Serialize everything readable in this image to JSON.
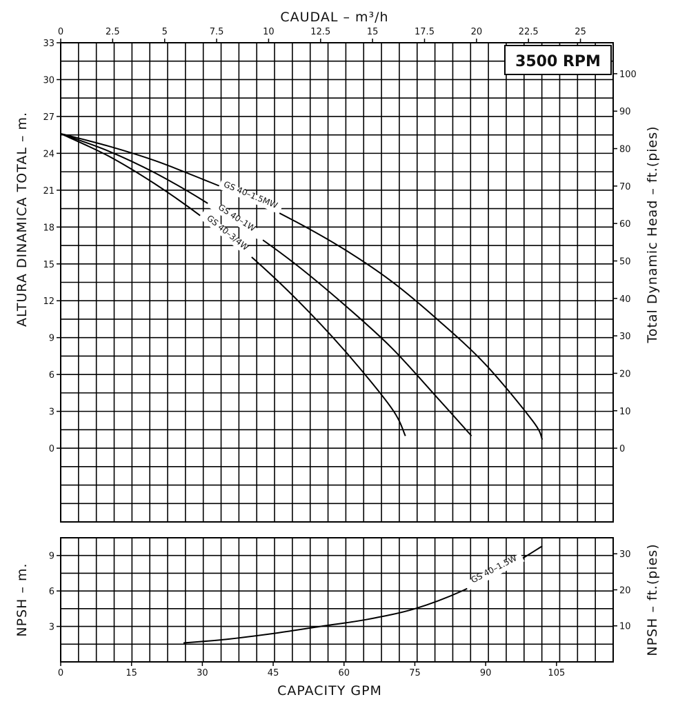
{
  "chart_data": [
    {
      "type": "line",
      "title": "",
      "badge": "3500 RPM",
      "top_xlabel": "CAUDAL  – m³/h",
      "left_ylabel": "ALTURA DINAMICA TOTAL – m.",
      "right_ylabel": "Total Dynamic Head – ft.(pies)",
      "xlim": [
        0,
        117
      ],
      "ylim": [
        -6,
        33
      ],
      "top_ticks": [
        "0",
        "2.5",
        "5",
        "7.5",
        "10",
        "12.5",
        "15",
        "17.5",
        "20",
        "22.5",
        "25"
      ],
      "left_ticks": [
        "0",
        "3",
        "6",
        "9",
        "12",
        "15",
        "18",
        "21",
        "24",
        "27",
        "30",
        "33"
      ],
      "right_ticks": [
        "0",
        "10",
        "20",
        "30",
        "40",
        "50",
        "60",
        "70",
        "80",
        "90",
        "100"
      ],
      "series": [
        {
          "name": "GS 40–1.5MW",
          "x": [
            0,
            10,
            20,
            30,
            40,
            50,
            60,
            70,
            80,
            90,
            100,
            102
          ],
          "y": [
            25.6,
            24.6,
            23.4,
            21.9,
            20.3,
            18.4,
            16.2,
            13.6,
            10.4,
            6.8,
            2.2,
            0.7
          ]
        },
        {
          "name": "GS 40–1W",
          "x": [
            0,
            10,
            20,
            30,
            40,
            50,
            60,
            70,
            80,
            87
          ],
          "y": [
            25.6,
            24.2,
            22.4,
            20.2,
            17.7,
            14.9,
            11.7,
            8.2,
            4.0,
            1.0
          ]
        },
        {
          "name": "GS 40–3/4W",
          "x": [
            0,
            10,
            20,
            30,
            40,
            50,
            60,
            70,
            73
          ],
          "y": [
            25.6,
            23.8,
            21.5,
            18.8,
            15.7,
            12.1,
            8.0,
            3.3,
            1.0
          ]
        }
      ]
    },
    {
      "type": "line",
      "title": "",
      "left_ylabel": "NPSH – m.",
      "right_ylabel": "NPSH – ft.(pies)",
      "xlabel": "CAPACITY GPM",
      "xlim": [
        0,
        117
      ],
      "ylim": [
        0,
        10.5
      ],
      "x_ticks": [
        "0",
        "15",
        "30",
        "45",
        "60",
        "75",
        "90",
        "105"
      ],
      "left_ticks": [
        "3",
        "6",
        "9"
      ],
      "right_ticks": [
        "10",
        "20",
        "30"
      ],
      "series": [
        {
          "name": "GS 40–1.5W",
          "x": [
            26,
            35,
            45,
            55,
            65,
            75,
            85,
            95,
            102
          ],
          "y": [
            1.6,
            1.9,
            2.4,
            3.0,
            3.6,
            4.5,
            6.0,
            8.1,
            9.8
          ]
        }
      ]
    }
  ]
}
